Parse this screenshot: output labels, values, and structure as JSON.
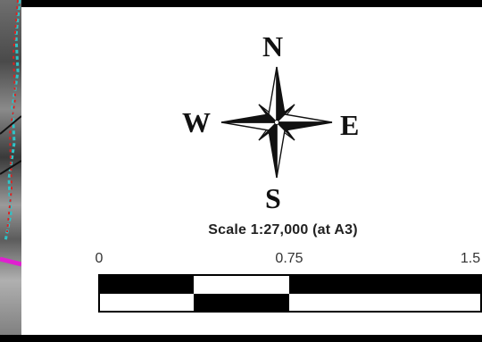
{
  "compass": {
    "north": "N",
    "east": "E",
    "south": "S",
    "west": "W"
  },
  "scale": {
    "title": "Scale 1:27,000 (at A3)",
    "ticks": [
      "0",
      "0.75",
      "1.5"
    ]
  },
  "colors": {
    "background": "#000000",
    "panel": "#ffffff",
    "ink": "#111111",
    "map_boundary_cyan": "#2ec4c8",
    "map_boundary_red": "#e02020",
    "map_boundary_magenta": "#e020d0"
  }
}
